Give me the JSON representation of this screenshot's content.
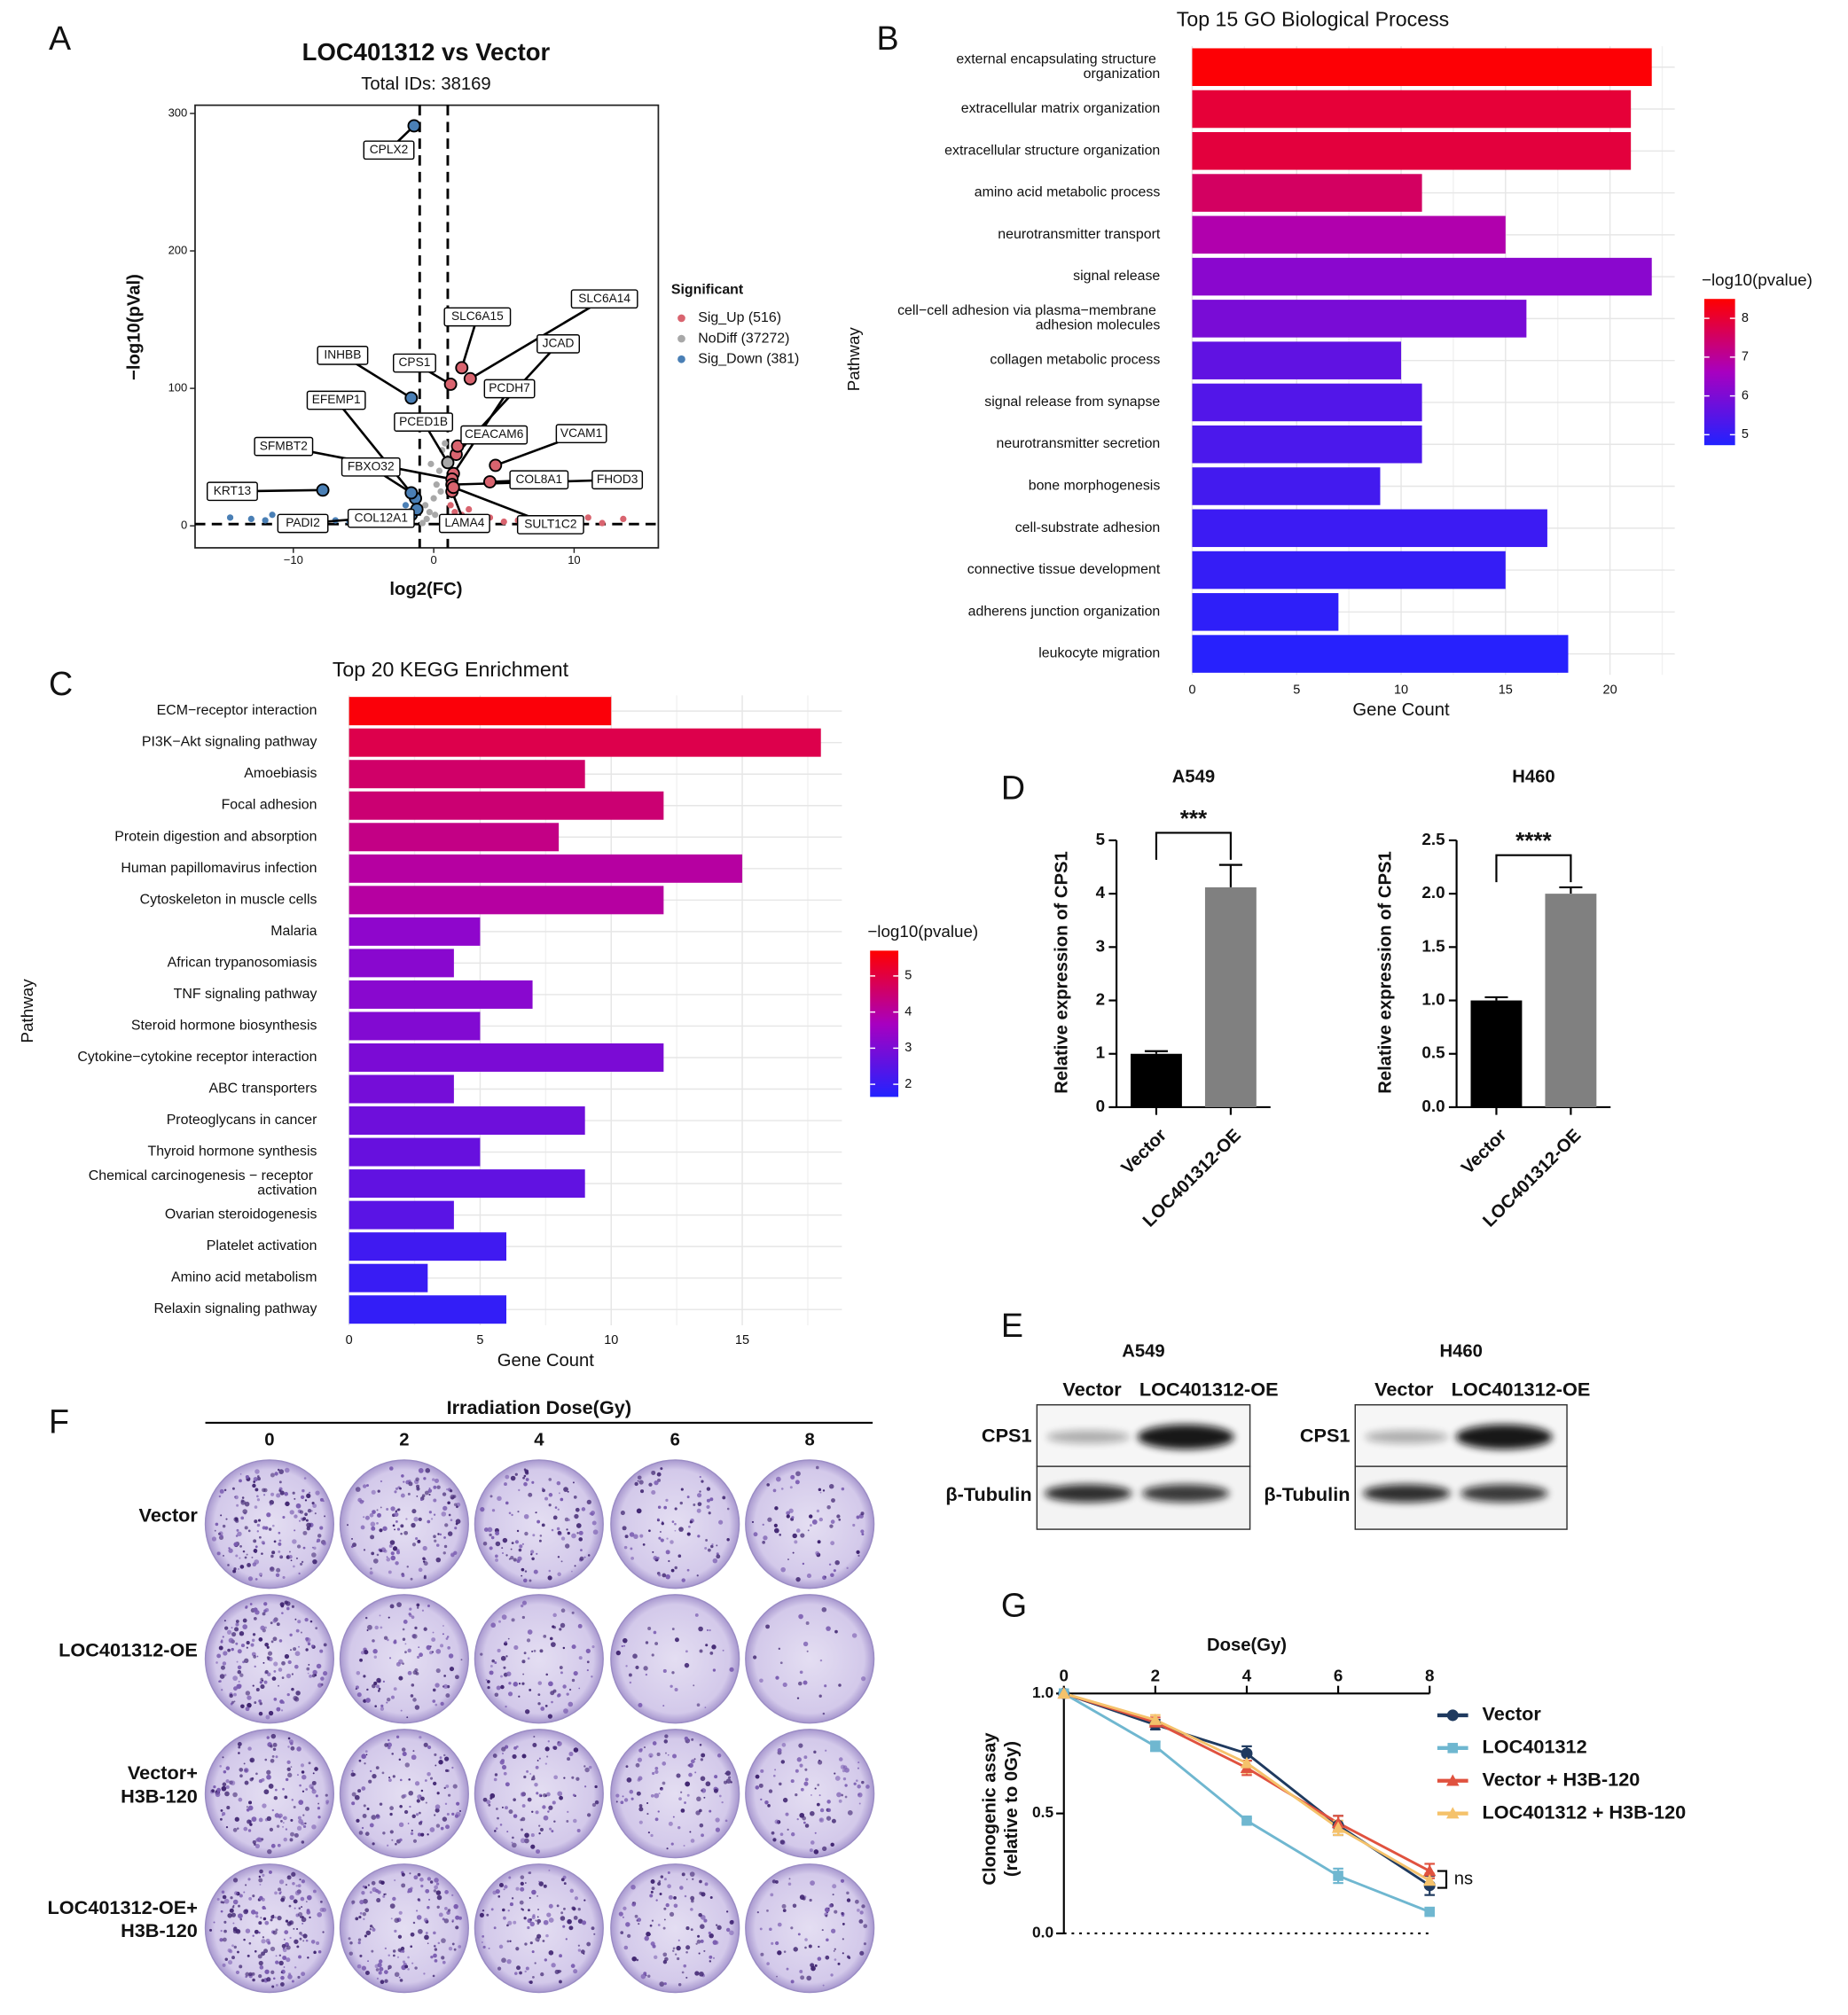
{
  "panel_labels": [
    "A",
    "B",
    "C",
    "D",
    "E",
    "F",
    "G"
  ],
  "chart_data": [
    {
      "type": "scatter",
      "title": "LOC401312 vs Vector",
      "subtitle": "Total IDs: 38169",
      "xlabel": "log2(FC)",
      "ylabel": "−log10(pVal)",
      "xlim": [
        -17,
        16
      ],
      "ylim": [
        -16,
        306
      ],
      "xticks": [
        {
          "value": -10,
          "label": "−10"
        },
        0,
        10
      ],
      "yticks": [
        0,
        100,
        200,
        300
      ],
      "thresholds": {
        "x": [
          -1,
          1
        ],
        "y": 1.3
      },
      "legend_title": "Significant",
      "series": [
        {
          "name": "Sig_Up (516)",
          "color": "#d9646f",
          "x": [
            1.2,
            1.5,
            2,
            2.5,
            3,
            4,
            5,
            6,
            7,
            8,
            9,
            10,
            11,
            12,
            13.5
          ],
          "y": [
            15,
            10,
            8,
            12,
            5,
            6,
            3,
            4,
            5,
            2,
            4,
            3,
            6,
            2,
            5
          ]
        },
        {
          "name": "NoDiff (37272)",
          "color": "#a8a8a8",
          "x": [
            -0.8,
            -0.5,
            -0.3,
            0,
            0.2,
            0.4,
            0.6,
            0.8,
            -0.6,
            0.1,
            -0.2,
            0.5
          ],
          "y": [
            2,
            5,
            10,
            20,
            30,
            40,
            55,
            60,
            15,
            8,
            45,
            25
          ]
        },
        {
          "name": "Sig_Down (381)",
          "color": "#4a7fb5",
          "x": [
            -14.5,
            -13,
            -12,
            -11.5,
            -10.5,
            -9.5,
            -8.5,
            -7,
            -6,
            -5,
            -4,
            -3,
            -2.5,
            -2,
            -1.5,
            -1.2
          ],
          "y": [
            6,
            5,
            4,
            8,
            3,
            5,
            2,
            4,
            3,
            2,
            6,
            10,
            4,
            15,
            8,
            12
          ]
        }
      ],
      "annotations": [
        {
          "label": "CPLX2",
          "x": -1.4,
          "y": 291
        },
        {
          "label": "SLC6A15",
          "x": 2.0,
          "y": 115
        },
        {
          "label": "SLC6A14",
          "x": 2.6,
          "y": 107
        },
        {
          "label": "CPS1",
          "x": 1.2,
          "y": 103
        },
        {
          "label": "INHBB",
          "x": -1.6,
          "y": 93
        },
        {
          "label": "JCAD",
          "x": 1.6,
          "y": 52
        },
        {
          "label": "PCDH7",
          "x": 1.4,
          "y": 38
        },
        {
          "label": "EFEMP1",
          "x": -1.3,
          "y": 20
        },
        {
          "label": "PCED1B",
          "x": 1.0,
          "y": 46
        },
        {
          "label": "CEACAM6",
          "x": 1.7,
          "y": 58
        },
        {
          "label": "VCAM1",
          "x": 4.4,
          "y": 44
        },
        {
          "label": "SFMBT2",
          "x": 1.3,
          "y": 34
        },
        {
          "label": "FBXO32",
          "x": -1.6,
          "y": 24
        },
        {
          "label": "KRT13",
          "x": -7.9,
          "y": 26
        },
        {
          "label": "COL8A1",
          "x": 4.0,
          "y": 32
        },
        {
          "label": "FHOD3",
          "x": 1.3,
          "y": 30
        },
        {
          "label": "PADI2",
          "x": -1.6,
          "y": 8
        },
        {
          "label": "COL12A1",
          "x": -1.2,
          "y": 12
        },
        {
          "label": "LAMA4",
          "x": 1.3,
          "y": 25
        },
        {
          "label": "SULT1C2",
          "x": 1.4,
          "y": 28
        }
      ]
    },
    {
      "type": "barh",
      "title": "Top 15 GO Biological Process",
      "xlabel": "Gene Count",
      "ylabel": "Pathway",
      "categories": [
        "external encapsulating structure organization",
        "extracellular matrix organization",
        "extracellular structure organization",
        "amino acid metabolic process",
        "neurotransmitter transport",
        "signal release",
        "cell−cell adhesion via plasma−membrane adhesion molecules",
        "collagen metabolic process",
        "signal release from synapse",
        "neurotransmitter secretion",
        "bone morphogenesis",
        "cell-substrate adhesion",
        "connective tissue development",
        "adherens junction organization",
        "leukocyte migration"
      ],
      "values": [
        22,
        21,
        21,
        11,
        15,
        22,
        16,
        10,
        11,
        11,
        9,
        17,
        15,
        7,
        18
      ],
      "color_values": [
        8.45,
        7.95,
        7.9,
        7.55,
        6.8,
        6.2,
        5.95,
        5.6,
        5.4,
        5.3,
        5.2,
        5.1,
        5.0,
        4.9,
        4.8
      ],
      "colorbar_title": "−log10(pvalue)",
      "clim": [
        4.73,
        8.5
      ],
      "cticks": [
        5,
        6,
        7,
        8
      ],
      "colorscale": [
        "#2222ff",
        "#a800c0",
        "#ff0000"
      ],
      "xlim": [
        0,
        23.1
      ],
      "xticks": [
        0,
        5,
        10,
        15,
        20
      ],
      "grid": true
    },
    {
      "type": "barh",
      "title": "Top 20 KEGG Enrichment",
      "xlabel": "Gene Count",
      "ylabel": "Pathway",
      "categories": [
        "ECM−receptor interaction",
        "PI3K−Akt signaling pathway",
        "Amoebiasis",
        "Focal adhesion",
        "Protein digestion and absorption",
        "Human papillomavirus infection",
        "Cytoskeleton in muscle cells",
        "Malaria",
        "African trypanosomiasis",
        "TNF signaling pathway",
        "Steroid hormone biosynthesis",
        "Cytokine−cytokine receptor interaction",
        "ABC transporters",
        "Proteoglycans in cancer",
        "Thyroid hormone synthesis",
        "Chemical carcinogenesis − receptor activation",
        "Ovarian steroidogenesis",
        "Platelet activation",
        "Amino acid metabolism",
        "Relaxin signaling pathway"
      ],
      "values": [
        10,
        18,
        9,
        12,
        8,
        15,
        12,
        5,
        4,
        7,
        5,
        12,
        4,
        9,
        5,
        9,
        4,
        6,
        3,
        6
      ],
      "color_values": [
        5.6,
        4.9,
        4.6,
        4.5,
        4.3,
        4.0,
        4.0,
        3.3,
        3.2,
        3.2,
        3.1,
        3.0,
        2.9,
        2.8,
        2.7,
        2.6,
        2.5,
        2.1,
        2.0,
        1.9
      ],
      "colorbar_title": "−log10(pvalue)",
      "clim": [
        1.65,
        5.7
      ],
      "cticks": [
        2,
        3,
        4,
        5
      ],
      "colorscale": [
        "#2222ff",
        "#a800c0",
        "#ff0000"
      ],
      "xlim": [
        0,
        18.8
      ],
      "xticks": [
        0,
        5,
        10,
        15
      ],
      "grid": true
    },
    {
      "type": "bar",
      "title": "A549",
      "ylabel": "Relative  expression of CPS1",
      "categories": [
        "Vector",
        "LOC401312-OE"
      ],
      "values": [
        1.0,
        4.12
      ],
      "errors": [
        0.05,
        0.42
      ],
      "colors": [
        "#000000",
        "#808080"
      ],
      "ylim": [
        0,
        5
      ],
      "yticks": [
        0,
        1,
        2,
        3,
        4,
        5
      ],
      "significance": "***"
    },
    {
      "type": "bar",
      "title": "H460",
      "ylabel": "Relative  expression of CPS1",
      "categories": [
        "Vector",
        "LOC401312-OE"
      ],
      "values": [
        1.0,
        2.0
      ],
      "errors": [
        0.03,
        0.06
      ],
      "colors": [
        "#000000",
        "#808080"
      ],
      "ylim": [
        0,
        2.5
      ],
      "yticks": [
        {
          "value": 0,
          "label": "0.0"
        },
        0.5,
        {
          "value": 1,
          "label": "1.0"
        },
        1.5,
        {
          "value": 2,
          "label": "2.0"
        },
        2.5
      ],
      "significance": "****"
    },
    {
      "type": "line",
      "xlabel": "Dose(Gy)",
      "ylabel": [
        "Clonogenic assay",
        "(relative to 0Gy)"
      ],
      "x": [
        0,
        2,
        4,
        6,
        8
      ],
      "xlim": [
        0,
        8
      ],
      "ylim": [
        0,
        1
      ],
      "xticks": [
        0,
        2,
        4,
        6,
        8
      ],
      "yticks": [
        {
          "value": 0,
          "label": "0.0"
        },
        0.5,
        {
          "value": 1,
          "label": "1.0"
        }
      ],
      "series": [
        {
          "name": "Vector",
          "color": "#1f3a5f",
          "marker": "circle",
          "values": [
            1.0,
            0.87,
            0.75,
            0.45,
            0.2
          ],
          "errors": [
            0,
            0.02,
            0.03,
            0.04,
            0.04
          ]
        },
        {
          "name": "LOC401312",
          "color": "#6fb7d0",
          "marker": "square",
          "values": [
            1.0,
            0.78,
            0.47,
            0.24,
            0.09
          ],
          "errors": [
            0,
            0.02,
            0.01,
            0.03,
            0.01
          ]
        },
        {
          "name": "Vector + H3B-120",
          "color": "#e0523f",
          "marker": "triangle",
          "values": [
            1.0,
            0.88,
            0.69,
            0.46,
            0.26
          ],
          "errors": [
            0,
            0.02,
            0.03,
            0.03,
            0.03
          ]
        },
        {
          "name": "LOC401312 + H3B-120",
          "color": "#f5c26b",
          "marker": "triangle",
          "values": [
            1.0,
            0.89,
            0.71,
            0.44,
            0.22
          ],
          "errors": [
            0,
            0.02,
            0.04,
            0.03,
            0.03
          ]
        }
      ],
      "annotation": "ns"
    }
  ],
  "western_blot": {
    "blots": [
      {
        "cell_line": "A549",
        "lanes": [
          "Vector",
          "LOC401312-OE"
        ],
        "proteins": [
          "CPS1",
          "β-Tubulin"
        ]
      },
      {
        "cell_line": "H460",
        "lanes": [
          "Vector",
          "LOC401312-OE"
        ],
        "proteins": [
          "CPS1",
          "β-Tubulin"
        ]
      }
    ]
  },
  "colony_assay": {
    "header": "Irradiation Dose(Gy)",
    "doses": [
      0,
      2,
      4,
      6,
      8
    ],
    "groups": [
      [
        "Vector"
      ],
      [
        "LOC401312-OE"
      ],
      [
        "Vector+",
        "H3B-120"
      ],
      [
        "LOC401312-OE+",
        "H3B-120"
      ]
    ]
  }
}
